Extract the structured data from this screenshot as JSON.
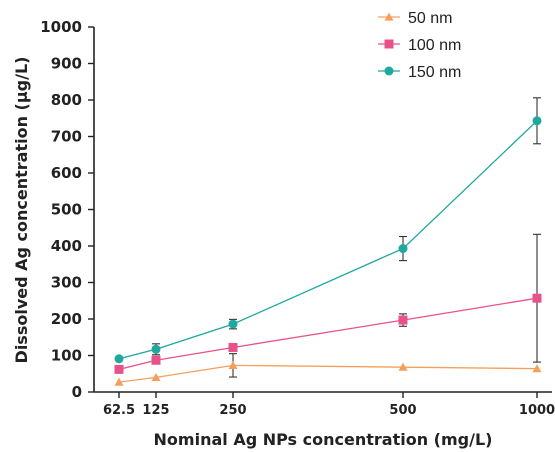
{
  "chart_data": {
    "type": "line",
    "xlabel": "Nominal Ag NPs concentration (mg/L)",
    "ylabel": "Dissolved Ag concentration (μg/L)",
    "x": [
      62.5,
      125,
      250,
      500,
      1000
    ],
    "x_tick_labels": [
      "62.5",
      "125",
      "250",
      "500",
      "1000"
    ],
    "ylim": [
      0,
      1000
    ],
    "y_ticks": [
      0,
      100,
      200,
      300,
      400,
      500,
      600,
      700,
      800,
      900,
      1000
    ],
    "grid": false,
    "legend_position": "top-right",
    "series": [
      {
        "name": "50 nm",
        "marker": "triangle",
        "color": "#f5a05a",
        "values": [
          27,
          40,
          73,
          68,
          64
        ],
        "error": [
          0,
          0,
          32,
          0,
          0
        ]
      },
      {
        "name": "100 nm",
        "marker": "square",
        "color": "#e8528a",
        "values": [
          62,
          87,
          122,
          197,
          257
        ],
        "error": [
          0,
          0,
          0,
          17,
          175
        ]
      },
      {
        "name": "150 nm",
        "marker": "circle",
        "color": "#1fa89e",
        "values": [
          91,
          117,
          186,
          393,
          743
        ],
        "error": [
          0,
          15,
          13,
          33,
          63
        ]
      }
    ]
  }
}
